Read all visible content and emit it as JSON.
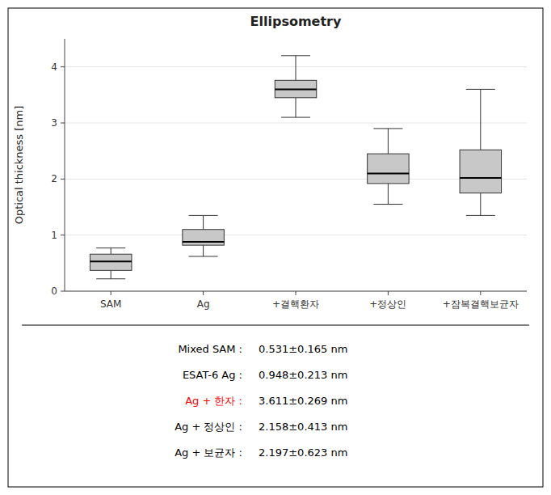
{
  "chart_data": {
    "type": "box",
    "title": "Ellipsometry",
    "y_label": "Optical thickness [nm]",
    "categories": [
      "SAM",
      "Ag",
      "+결핵환자",
      "+정상인",
      "+잠복결핵보균자"
    ],
    "boxes": [
      {
        "q1": 0.37,
        "median": 0.53,
        "q3": 0.66,
        "whislo": 0.22,
        "whishi": 0.77
      },
      {
        "q1": 0.82,
        "median": 0.88,
        "q3": 1.1,
        "whislo": 0.62,
        "whishi": 1.35
      },
      {
        "q1": 3.45,
        "median": 3.6,
        "q3": 3.76,
        "whislo": 3.1,
        "whishi": 4.2
      },
      {
        "q1": 1.92,
        "median": 2.1,
        "q3": 2.45,
        "whislo": 1.55,
        "whishi": 2.9
      },
      {
        "q1": 1.75,
        "median": 2.02,
        "q3": 2.52,
        "whislo": 1.35,
        "whishi": 3.6
      }
    ],
    "color": "#c8c8c8",
    "ylim": [
      0,
      4.5
    ],
    "yticks": [
      0,
      1,
      2,
      3,
      4
    ],
    "annotations": [
      {
        "label": "Mixed SAM :",
        "text": "0.531±0.165 nm",
        "color": "#000000"
      },
      {
        "label": "ESAT-6 Ag :",
        "text": "0.948±0.213 nm",
        "color": "#000000"
      },
      {
        "label": "Ag + 한자 :",
        "text": "3.611±0.269 nm",
        "color": "#ff0000"
      },
      {
        "label": "Ag + 정상인 :",
        "text": "2.158±0.413 nm",
        "color": "#000000"
      },
      {
        "label": "Ag + 보균자 :",
        "text": "2.197±0.623 nm",
        "color": "#000000"
      }
    ]
  }
}
